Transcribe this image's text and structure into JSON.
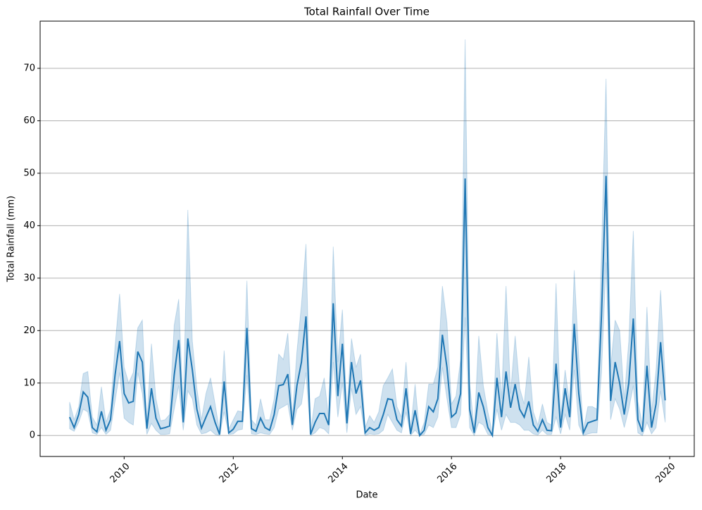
{
  "chart_data": {
    "type": "line",
    "title": "Total Rainfall Over Time",
    "x_label": "Date",
    "y_label": "Total Rainfall (mm)",
    "color": "#1f77b4",
    "grid": true,
    "xlim": [
      2008.46,
      2020.45
    ],
    "ylim": [
      -4,
      79
    ],
    "xticks": [
      2010,
      2012,
      2014,
      2016,
      2018,
      2020
    ],
    "yticks": [
      0,
      10,
      20,
      30,
      40,
      50,
      60,
      70
    ],
    "x": [
      2009,
      2009.083,
      2009.167,
      2009.25,
      2009.333,
      2009.417,
      2009.5,
      2009.583,
      2009.667,
      2009.75,
      2009.833,
      2009.917,
      2010,
      2010.083,
      2010.167,
      2010.25,
      2010.333,
      2010.417,
      2010.5,
      2010.583,
      2010.667,
      2010.75,
      2010.833,
      2010.917,
      2011,
      2011.083,
      2011.167,
      2011.25,
      2011.333,
      2011.417,
      2011.5,
      2011.583,
      2011.667,
      2011.75,
      2011.833,
      2011.917,
      2012,
      2012.083,
      2012.167,
      2012.25,
      2012.333,
      2012.417,
      2012.5,
      2012.583,
      2012.667,
      2012.75,
      2012.833,
      2012.917,
      2013,
      2013.083,
      2013.167,
      2013.25,
      2013.333,
      2013.417,
      2013.5,
      2013.583,
      2013.667,
      2013.75,
      2013.833,
      2013.917,
      2014,
      2014.083,
      2014.167,
      2014.25,
      2014.333,
      2014.417,
      2014.5,
      2014.583,
      2014.667,
      2014.75,
      2014.833,
      2014.917,
      2015,
      2015.083,
      2015.167,
      2015.25,
      2015.333,
      2015.417,
      2015.5,
      2015.583,
      2015.667,
      2015.75,
      2015.833,
      2015.917,
      2016,
      2016.083,
      2016.167,
      2016.25,
      2016.333,
      2016.417,
      2016.5,
      2016.583,
      2016.667,
      2016.75,
      2016.833,
      2016.917,
      2017,
      2017.083,
      2017.167,
      2017.25,
      2017.333,
      2017.417,
      2017.5,
      2017.583,
      2017.667,
      2017.75,
      2017.833,
      2017.917,
      2018,
      2018.083,
      2018.167,
      2018.25,
      2018.333,
      2018.417,
      2018.5,
      2018.583,
      2018.667,
      2018.75,
      2018.833,
      2018.917,
      2019,
      2019.083,
      2019.167,
      2019.25,
      2019.333,
      2019.417,
      2019.5,
      2019.583,
      2019.667,
      2019.75,
      2019.833,
      2019.917
    ],
    "values": [
      3.5,
      1.5,
      4,
      8.3,
      7.3,
      1.5,
      0.7,
      4.6,
      1,
      3,
      11.5,
      18,
      8,
      6.2,
      6.5,
      16,
      14,
      1.3,
      9,
      3.3,
      1.3,
      1.5,
      1.8,
      11.5,
      18.2,
      2.5,
      18.5,
      12.5,
      5,
      1.4,
      3.5,
      5.5,
      2.5,
      0.2,
      10.3,
      0.5,
      1.2,
      2.7,
      2.7,
      20.5,
      1.3,
      0.8,
      3.3,
      1.5,
      1,
      4,
      9.5,
      9.7,
      11.7,
      2,
      9.5,
      14,
      22.7,
      0.2,
      2.5,
      4.2,
      4.2,
      2,
      25.2,
      7.5,
      17.5,
      2.3,
      14,
      8,
      10.5,
      0.5,
      1.5,
      1,
      1.5,
      4,
      7,
      6.8,
      3,
      1.8,
      9,
      0.3,
      4.8,
      0,
      1,
      5.5,
      4.5,
      7,
      19.2,
      13,
      3.5,
      4.3,
      8,
      49,
      5,
      0.5,
      8.2,
      5.5,
      1.5,
      0,
      11,
      3.5,
      12.2,
      5.3,
      9.8,
      5,
      3.5,
      6.5,
      2,
      0.8,
      3,
      1,
      0.9,
      13.7,
      1.5,
      9,
      3.5,
      21.3,
      8,
      0.5,
      2.4,
      2.7,
      3,
      23,
      49.5,
      6.6,
      14,
      10,
      4,
      10,
      22.3,
      3,
      0.7,
      13.3,
      1.5,
      6,
      17.8,
      6.7
    ],
    "upper": [
      6.4,
      3,
      5.5,
      11.8,
      12.2,
      3.5,
      2,
      9.3,
      2.5,
      5,
      17,
      27,
      13,
      10,
      12,
      20.5,
      22,
      2.5,
      17.5,
      7,
      2.8,
      3,
      4,
      21,
      26,
      5,
      43,
      18,
      9,
      3,
      8,
      11,
      6,
      0.8,
      16.2,
      1.2,
      3,
      4.7,
      4.5,
      29.5,
      3,
      2,
      7,
      3,
      3,
      7,
      15.5,
      14.5,
      19.5,
      3.5,
      16,
      25,
      36.5,
      0.5,
      7,
      7.5,
      11,
      3,
      36,
      14,
      24,
      4.5,
      18.5,
      13,
      15.5,
      1.5,
      3.8,
      2.5,
      4.5,
      9.5,
      11,
      12.7,
      5.5,
      3.5,
      14,
      1,
      9.8,
      0.2,
      2.5,
      9.8,
      9.8,
      13,
      28.5,
      21.5,
      6,
      7.5,
      14.5,
      75.5,
      10,
      1.2,
      19,
      9.5,
      4.5,
      0.5,
      19.5,
      7,
      28.5,
      8,
      19,
      9,
      6,
      15,
      4.5,
      2,
      6,
      2.5,
      2,
      29,
      3.5,
      12.5,
      6,
      31.5,
      15,
      1,
      5.5,
      5.5,
      5,
      35,
      68,
      13,
      22,
      20,
      7,
      18,
      39,
      6.5,
      2,
      24.5,
      4.5,
      12.5,
      27.7,
      11
    ],
    "lower": [
      1.3,
      0.8,
      2.5,
      5,
      4.5,
      0.5,
      0.2,
      1.5,
      0.2,
      1,
      6.5,
      12,
      3.3,
      2.5,
      2,
      12,
      8,
      0.2,
      2.3,
      1,
      0.2,
      0.2,
      0.3,
      5,
      9.5,
      1,
      8.5,
      7,
      2,
      0.3,
      0.5,
      1,
      0.2,
      0,
      4.5,
      0.2,
      0.3,
      1,
      1.2,
      11.5,
      0.3,
      0.2,
      0.5,
      0.3,
      0.2,
      1.5,
      5,
      5.5,
      6,
      1,
      5,
      6,
      12,
      0,
      0.5,
      1.5,
      1.2,
      0.3,
      14,
      3.5,
      10,
      0.5,
      9,
      4,
      5.5,
      0,
      0.3,
      0.2,
      0.3,
      1,
      4,
      2.5,
      1,
      0.5,
      4.5,
      0,
      1,
      0,
      0.2,
      2,
      1.5,
      3.5,
      13,
      7,
      1.5,
      1.5,
      4,
      22.5,
      1.5,
      0,
      2.5,
      2,
      0.2,
      0,
      5,
      1,
      4,
      2.5,
      2.5,
      2,
      1,
      1,
      0.3,
      0.1,
      1,
      0.2,
      0.2,
      3.5,
      0.3,
      4,
      1,
      12.5,
      2,
      0,
      0.3,
      0.5,
      0.5,
      12,
      33,
      3,
      7,
      5,
      1.5,
      5,
      9.5,
      0.5,
      0,
      2.5,
      0.3,
      1.5,
      8.5,
      2.5
    ]
  }
}
